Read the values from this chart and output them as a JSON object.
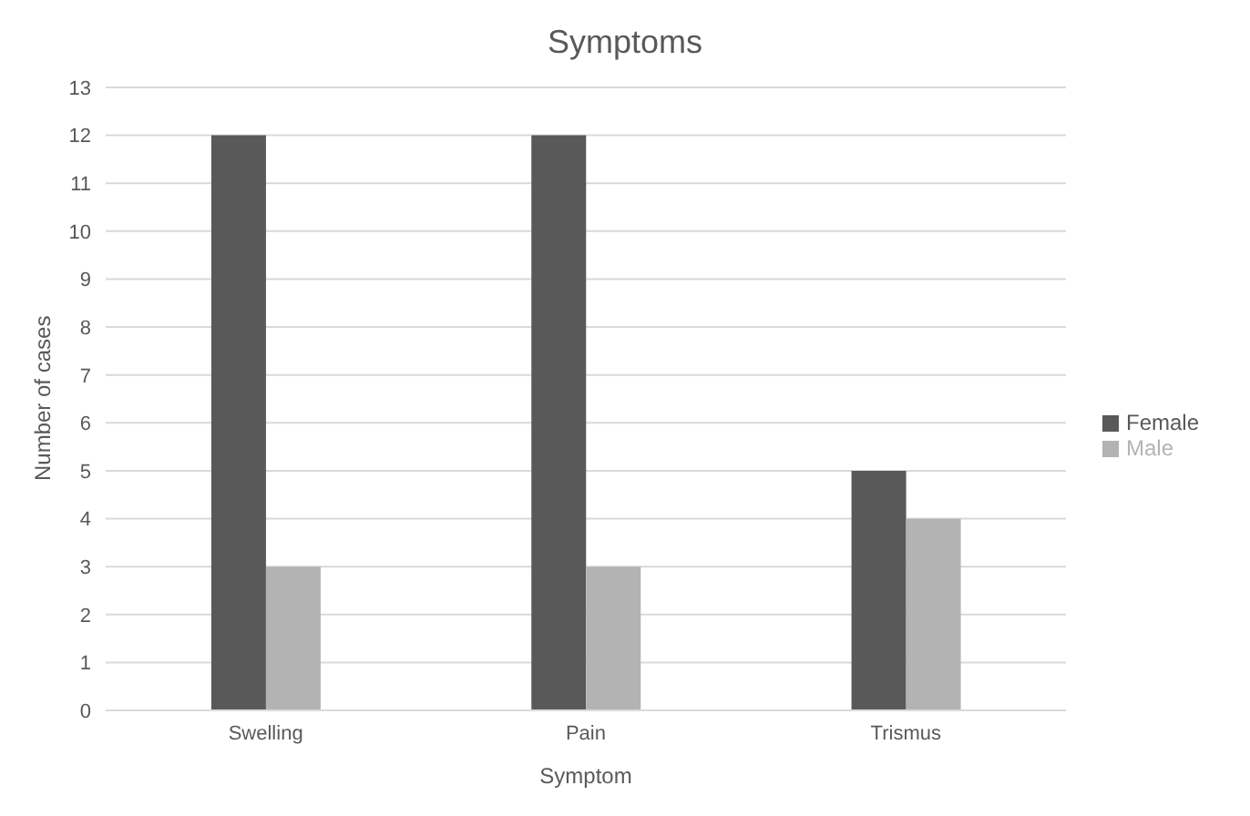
{
  "chart_data": {
    "type": "bar",
    "title": "Symptoms",
    "xlabel": "Symptom",
    "ylabel": "Number of cases",
    "categories": [
      "Swelling",
      "Pain",
      "Trismus"
    ],
    "series": [
      {
        "name": "Female",
        "color": "#595959",
        "values": [
          12,
          12,
          5
        ]
      },
      {
        "name": "Male",
        "color": "#b3b3b3",
        "values": [
          3,
          3,
          4
        ]
      }
    ],
    "ylim": [
      0,
      13
    ],
    "yticks": [
      0,
      1,
      2,
      3,
      4,
      5,
      6,
      7,
      8,
      9,
      10,
      11,
      12,
      13
    ],
    "grid": "y",
    "legend": "right"
  }
}
